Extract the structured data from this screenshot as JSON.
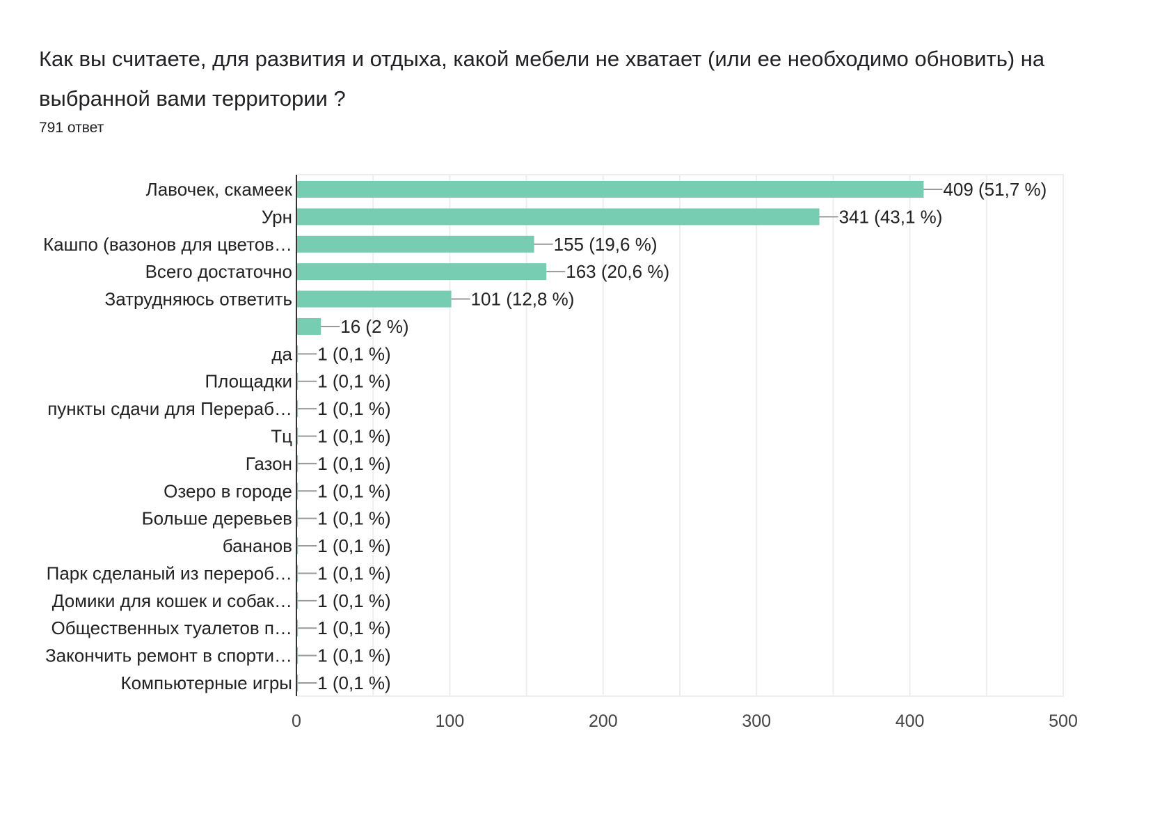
{
  "header": {
    "title": "Как вы считаете, для развития и отдыха, какой мебели не хватает (или ее необходимо обновить) на выбранной вами территории ?",
    "response_count": "791 ответ"
  },
  "chart_data": {
    "type": "bar",
    "orientation": "horizontal",
    "categories": [
      "Лавочек, скамеек",
      "Урн",
      "Кашпо (вазонов для цветов…",
      "Всего достаточно",
      "Затрудняюсь ответить",
      "",
      "да",
      "Площадки",
      "пункты сдачи для Перераб…",
      "Тц",
      "Газон",
      "Озеро в городе",
      "Больше деревьев",
      "бананов",
      "Парк сделаный из перероб…",
      "Домики для кошек и собак…",
      "Общественных туалетов п…",
      "Закончить ремонт в спорти…",
      "Компьютерные игры"
    ],
    "values": [
      409,
      341,
      155,
      163,
      101,
      16,
      1,
      1,
      1,
      1,
      1,
      1,
      1,
      1,
      1,
      1,
      1,
      1,
      1
    ],
    "data_labels": [
      "409 (51,7 %)",
      "341 (43,1 %)",
      "155 (19,6 %)",
      "163 (20,6 %)",
      "101 (12,8 %)",
      "16 (2 %)",
      "1 (0,1 %)",
      "1 (0,1 %)",
      "1 (0,1 %)",
      "1 (0,1 %)",
      "1 (0,1 %)",
      "1 (0,1 %)",
      "1 (0,1 %)",
      "1 (0,1 %)",
      "1 (0,1 %)",
      "1 (0,1 %)",
      "1 (0,1 %)",
      "1 (0,1 %)",
      "1 (0,1 %)"
    ],
    "xlim": [
      0,
      500
    ],
    "xticks": [
      "0",
      "100",
      "200",
      "300",
      "400",
      "500"
    ],
    "grid": true,
    "bar_color": "#76cdb2"
  }
}
